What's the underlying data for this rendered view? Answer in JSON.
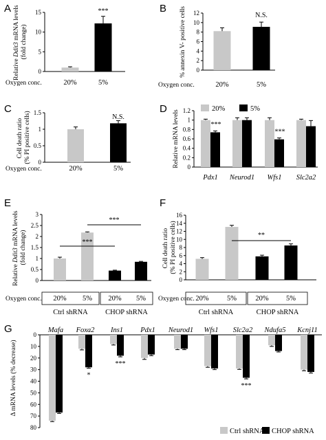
{
  "colors": {
    "gray": "#c8c8c8",
    "black": "#000000"
  },
  "chart_data": [
    {
      "panel": "A",
      "type": "bar",
      "ylabel": "Relative Ddit3 mRNA levels (fold change)",
      "ylim": [
        0,
        15
      ],
      "yticks": [
        0,
        5,
        10,
        15
      ],
      "group_label": "Oxygen conc.",
      "categories": [
        "20%",
        "5%"
      ],
      "values": [
        1.0,
        12.2
      ],
      "errors": [
        0.2,
        1.8
      ],
      "annotations": [
        "",
        "***"
      ]
    },
    {
      "panel": "B",
      "type": "bar",
      "ylabel": "% annexin V- positive cells",
      "ylim": [
        0,
        12
      ],
      "yticks": [
        0,
        2,
        4,
        6,
        8,
        10,
        12
      ],
      "group_label": "Oxygen conc.",
      "categories": [
        "20%",
        "5%"
      ],
      "values": [
        8.2,
        9.1
      ],
      "errors": [
        0.7,
        1.0
      ],
      "annotations": [
        "",
        "N.S."
      ]
    },
    {
      "panel": "C",
      "type": "bar",
      "ylabel": "Cell death ratio (% PI positive cells)",
      "ylim": [
        0,
        1.5
      ],
      "yticks": [
        0,
        0.5,
        1,
        1.5
      ],
      "group_label": "Oxygen conc.",
      "categories": [
        "20%",
        "5%"
      ],
      "values": [
        1.0,
        1.18
      ],
      "errors": [
        0.07,
        0.08
      ],
      "annotations": [
        "",
        "N.S."
      ]
    },
    {
      "panel": "D",
      "type": "bar",
      "ylabel": "Relative mRNA levels",
      "ylim": [
        0,
        1.2
      ],
      "yticks": [
        "0",
        "0.2",
        "0.4",
        "0.6",
        "0.8",
        "1",
        "1.2"
      ],
      "categories": [
        "Pdx1",
        "Neurod1",
        "Wfs1",
        "Slc2a2"
      ],
      "series": [
        {
          "name": "20%",
          "values": [
            1.0,
            1.0,
            1.0,
            1.0
          ],
          "errors": [
            0.02,
            0.05,
            0.05,
            0.02
          ]
        },
        {
          "name": "5%",
          "values": [
            0.74,
            1.0,
            0.59,
            0.87
          ],
          "errors": [
            0.03,
            0.05,
            0.03,
            0.12
          ]
        }
      ],
      "annotations": [
        "***",
        "",
        "***",
        ""
      ]
    },
    {
      "panel": "E",
      "type": "bar",
      "ylabel": "Relative Ddit3 mRNA levels (fold change)",
      "ylim": [
        0,
        3
      ],
      "yticks": [
        "0",
        "0.5",
        "1",
        "1.5",
        "2",
        "2.5",
        "3"
      ],
      "group_label": "Oxygen conc.",
      "categories": [
        "20%",
        "5%",
        "20%",
        "5%"
      ],
      "groups": [
        "Ctrl shRNA",
        "CHOP shRNA"
      ],
      "values": [
        1.0,
        2.18,
        0.45,
        0.85
      ],
      "errors": [
        0.06,
        0.03,
        0.02,
        0.02
      ],
      "brackets": [
        "***",
        "***"
      ]
    },
    {
      "panel": "F",
      "type": "bar",
      "ylabel": "Cell death ratio (% PI positive cells)",
      "ylim": [
        0,
        16
      ],
      "yticks": [
        0,
        2,
        4,
        6,
        8,
        10,
        12,
        14,
        16
      ],
      "group_label": "Oxygen conc.",
      "categories": [
        "20%",
        "5%",
        "20%",
        "5%"
      ],
      "groups": [
        "Ctrl shRNA",
        "CHOP shRNA"
      ],
      "values": [
        5.2,
        13.1,
        5.8,
        8.5
      ],
      "errors": [
        0.3,
        0.4,
        0.3,
        0.4
      ],
      "brackets": [
        "**"
      ]
    },
    {
      "panel": "G",
      "type": "bar",
      "ylabel": "Δ mRNA levels (% decrease)",
      "ylim": [
        0,
        80
      ],
      "yticks": [
        0,
        10,
        20,
        30,
        40,
        50,
        60,
        70,
        80
      ],
      "inverted": true,
      "categories": [
        "Mafa",
        "Foxa2",
        "Ins1",
        "Pdx1",
        "Neurod1",
        "Wfs1",
        "Slc2a2",
        "Ndufa5",
        "Kcnj11"
      ],
      "series": [
        {
          "name": "Ctrl shRNA",
          "values": [
            74,
            12,
            8,
            20,
            12,
            27,
            29,
            9,
            30
          ],
          "errors": [
            0.8,
            1.0,
            0.8,
            1.2,
            0.8,
            1.0,
            0.8,
            1.0,
            1.0
          ]
        },
        {
          "name": "CHOP shRNA",
          "values": [
            67,
            28,
            18,
            17,
            12,
            29,
            37,
            14,
            32
          ],
          "errors": [
            0.8,
            0.8,
            1.0,
            1.0,
            0.8,
            1.0,
            1.0,
            0.8,
            1.0
          ]
        }
      ],
      "annotations": [
        "",
        "*",
        "***",
        "",
        "",
        "",
        "***",
        "",
        ""
      ]
    }
  ]
}
